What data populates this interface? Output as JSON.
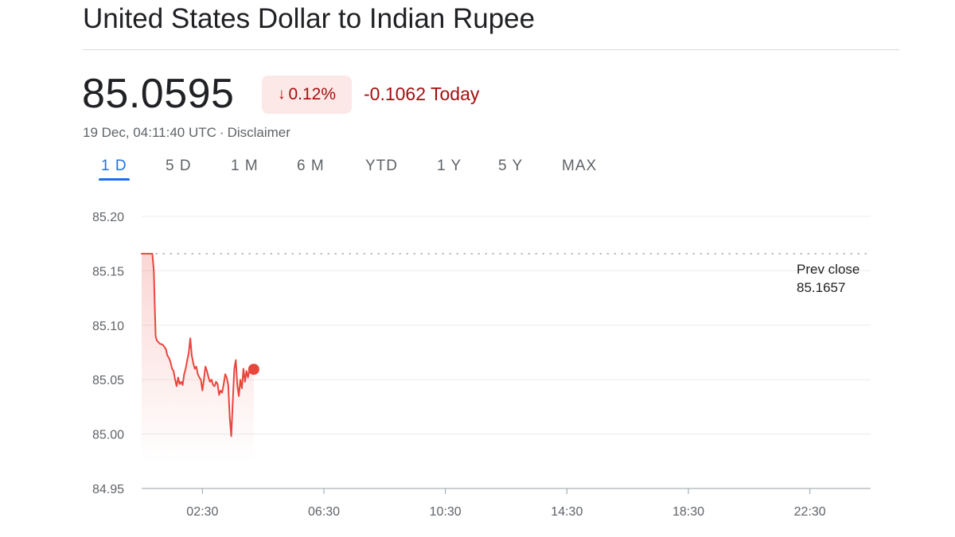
{
  "header": {
    "title": "United States Dollar to Indian Rupee",
    "price": "85.0595",
    "change_percent": "0.12%",
    "change_today": "-0.1062 Today",
    "timestamp": "19 Dec, 04:11:40 UTC",
    "separator": "·",
    "disclaimer": "Disclaimer"
  },
  "icons": {
    "change_direction": "arrow-down-icon"
  },
  "tabs": [
    {
      "label": "1 D",
      "active": true
    },
    {
      "label": "5 D",
      "active": false
    },
    {
      "label": "1 M",
      "active": false
    },
    {
      "label": "6 M",
      "active": false
    },
    {
      "label": "YTD",
      "active": false
    },
    {
      "label": "1 Y",
      "active": false
    },
    {
      "label": "5 Y",
      "active": false
    },
    {
      "label": "MAX",
      "active": false
    }
  ],
  "colors": {
    "negative": "#a50e0e",
    "line": "#e8453c",
    "badge_bg": "#fce8e6",
    "accent": "#1a73e8",
    "grid": "#ececec"
  },
  "chart_data": {
    "type": "line",
    "x_unit": "hours (UTC)",
    "xlim": [
      0.5,
      24.5
    ],
    "ylim": [
      84.95,
      85.2
    ],
    "y_ticks": [
      85.2,
      85.15,
      85.1,
      85.05,
      85.0,
      84.95
    ],
    "y_tick_labels": [
      "85.20",
      "85.15",
      "85.10",
      "85.05",
      "85.00",
      "84.95"
    ],
    "x_ticks": [
      2.5,
      6.5,
      10.5,
      14.5,
      18.5,
      22.5
    ],
    "x_tick_labels": [
      "02:30",
      "06:30",
      "10:30",
      "14:30",
      "18:30",
      "22:30"
    ],
    "grid": true,
    "prev_close": 85.1657,
    "prev_close_label": "Prev close",
    "prev_close_value": "85.1657",
    "series": [
      {
        "x": [
          0.5,
          0.85,
          0.9,
          0.93,
          0.96,
          1.0,
          1.1,
          1.2,
          1.3,
          1.35,
          1.4,
          1.45,
          1.5,
          1.55,
          1.6,
          1.65,
          1.7,
          1.75,
          1.8,
          1.85,
          1.9,
          1.95,
          2.0,
          2.05,
          2.1,
          2.15,
          2.2,
          2.25,
          2.3,
          2.35,
          2.4,
          2.45,
          2.5,
          2.55,
          2.6,
          2.65,
          2.7,
          2.75,
          2.8,
          2.85,
          2.9,
          2.95,
          3.0,
          3.05,
          3.1,
          3.15,
          3.2,
          3.25,
          3.3,
          3.35,
          3.4,
          3.45,
          3.5,
          3.55,
          3.6,
          3.65,
          3.7,
          3.75,
          3.8,
          3.85,
          3.9,
          3.95,
          4.0,
          4.05,
          4.1,
          4.15,
          4.19
        ],
        "values": [
          85.1657,
          85.1657,
          85.15,
          85.12,
          85.09,
          85.086,
          85.083,
          85.082,
          85.078,
          85.072,
          85.07,
          85.066,
          85.06,
          85.058,
          85.05,
          85.044,
          85.052,
          85.046,
          85.048,
          85.045,
          85.055,
          85.06,
          85.068,
          85.075,
          85.088,
          85.072,
          85.065,
          85.06,
          85.062,
          85.055,
          85.052,
          85.05,
          85.04,
          85.05,
          85.062,
          85.058,
          85.052,
          85.048,
          85.05,
          85.045,
          85.044,
          85.048,
          85.046,
          85.036,
          85.04,
          85.038,
          85.046,
          85.055,
          85.052,
          85.045,
          85.015,
          84.998,
          85.03,
          85.06,
          85.068,
          85.045,
          85.035,
          85.05,
          85.042,
          85.06,
          85.048,
          85.058,
          85.052,
          85.06,
          85.056,
          85.062,
          85.0595
        ]
      }
    ]
  }
}
